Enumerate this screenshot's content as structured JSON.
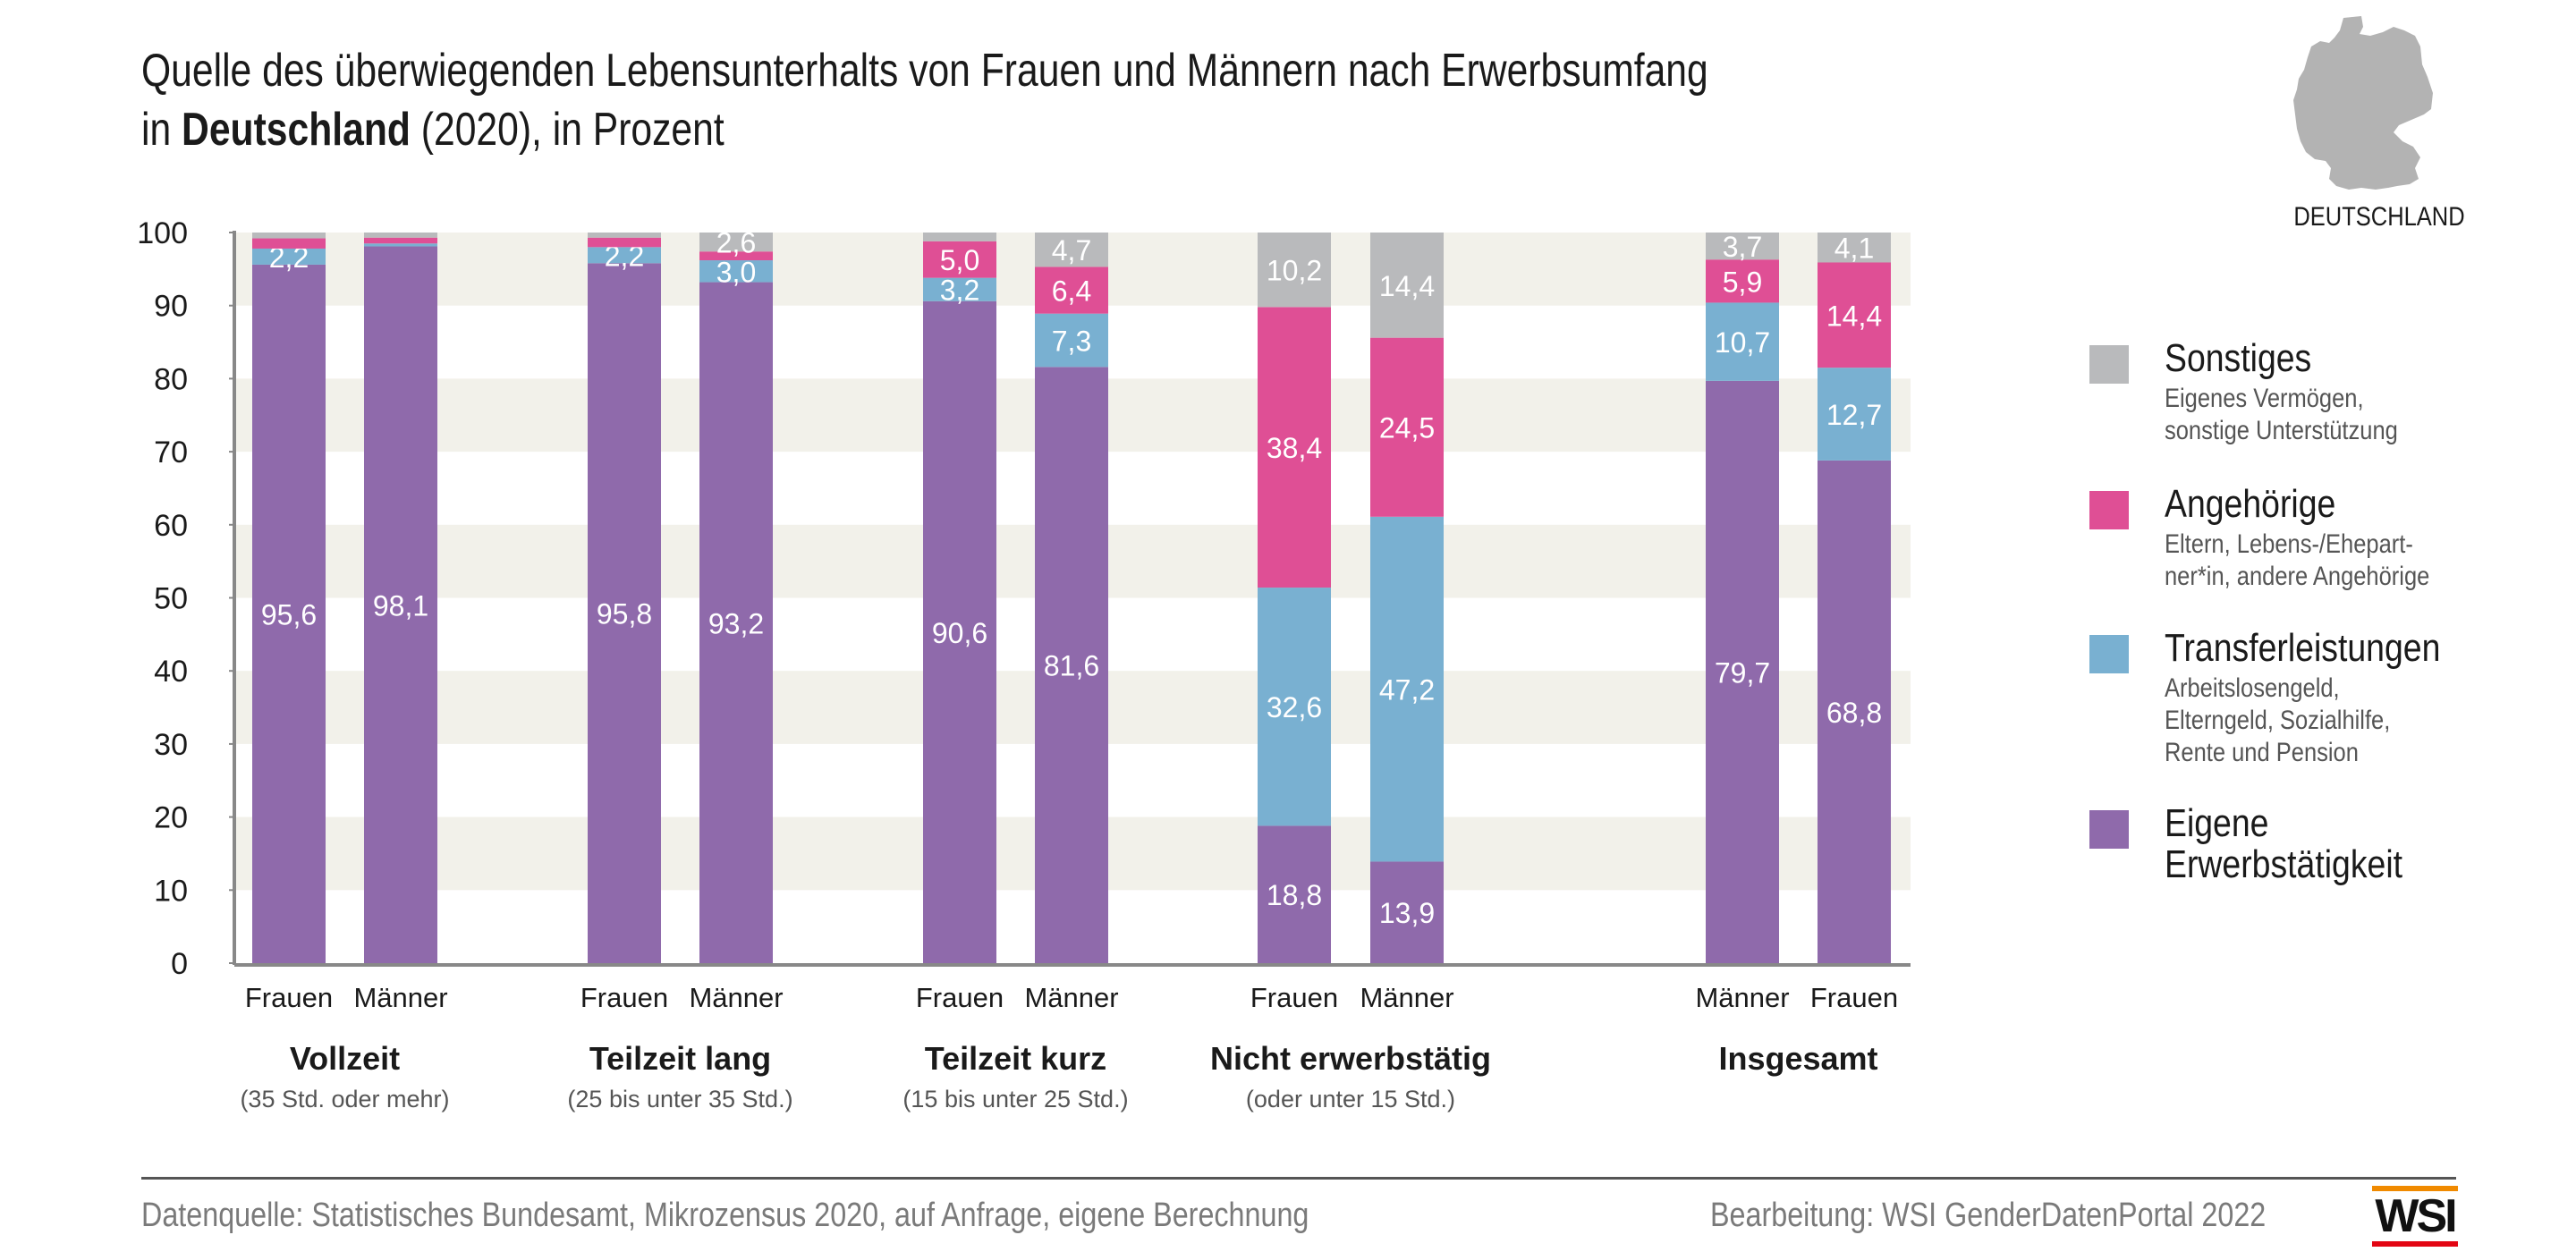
{
  "header": {
    "title_line1": "Quelle des überwiegenden Lebensunterhalts von Frauen und Männern nach Erwerbsumfang",
    "title_line2_prefix": "in ",
    "title_line2_bold": "Deutschland",
    "title_line2_suffix": " (2020), in Prozent"
  },
  "map": {
    "icon": "germany-map-icon",
    "label": "DEUTSCHLAND"
  },
  "legend": [
    {
      "key": "sonstiges",
      "title": "Sonstiges",
      "desc": "Eigenes Vermögen,\nsonstige Unterstützung",
      "color": "#b9babc"
    },
    {
      "key": "angehoerige",
      "title": "Angehörige",
      "desc": "Eltern, Lebens-/Ehepart-\nner*in, andere Angehörige",
      "color": "#df4f95"
    },
    {
      "key": "transfer",
      "title": "Transferleistungen",
      "desc": "Arbeitslosengeld,\nElterngeld, Sozialhilfe,\nRente und Pension",
      "color": "#79b0d1"
    },
    {
      "key": "eigene",
      "title": "Eigene\nErwerbstätigkeit",
      "desc": "",
      "color": "#8f6aab"
    }
  ],
  "footer": {
    "source": "Datenquelle: Statistisches Bundesamt, Mikrozensus 2020, auf Anfrage, eigene Berechnung",
    "credit": "Bearbeitung: WSI GenderDatenPortal 2022",
    "logo": "WSI"
  },
  "chart_data": {
    "type": "bar",
    "stacked": true,
    "title": "Quelle des überwiegenden Lebensunterhalts von Frauen und Männern nach Erwerbsumfang in Deutschland (2020), in Prozent",
    "xlabel": "",
    "ylabel": "",
    "ylim": [
      0,
      100
    ],
    "yticks": [
      0,
      10,
      20,
      30,
      40,
      50,
      60,
      70,
      80,
      90,
      100
    ],
    "grid": "alternating horizontal bands",
    "legend_position": "right",
    "groups": [
      {
        "label": "Vollzeit",
        "sublabel": "(35 Std. oder mehr)",
        "bars": [
          "Frauen",
          "Männer"
        ]
      },
      {
        "label": "Teilzeit lang",
        "sublabel": "(25 bis unter 35 Std.)",
        "bars": [
          "Frauen",
          "Männer"
        ]
      },
      {
        "label": "Teilzeit kurz",
        "sublabel": "(15 bis unter 25 Std.)",
        "bars": [
          "Frauen",
          "Männer"
        ]
      },
      {
        "label": "Nicht erwerbstätig",
        "sublabel": "(oder unter 15 Std.)",
        "bars": [
          "Frauen",
          "Männer"
        ]
      },
      {
        "label": "Insgesamt",
        "sublabel": "",
        "bars": [
          "Männer",
          "Frauen"
        ]
      }
    ],
    "categories": [
      "Vollzeit Frauen",
      "Vollzeit Männer",
      "Teilzeit lang Frauen",
      "Teilzeit lang Männer",
      "Teilzeit kurz Frauen",
      "Teilzeit kurz Männer",
      "Nicht erwerbstätig Frauen",
      "Nicht erwerbstätig Männer",
      "Insgesamt Männer",
      "Insgesamt Frauen"
    ],
    "series": [
      {
        "name": "Eigene Erwerbstätigkeit",
        "color": "#8f6aab",
        "values": [
          95.6,
          98.1,
          95.8,
          93.2,
          90.6,
          81.6,
          18.8,
          13.9,
          79.7,
          68.8
        ],
        "labels": [
          "95,6",
          "98,1",
          "95,8",
          "93,2",
          "90,6",
          "81,6",
          "18,8",
          "13,9",
          "79,7",
          "68,8"
        ]
      },
      {
        "name": "Transferleistungen",
        "color": "#79b0d1",
        "values": [
          2.2,
          0.4,
          2.2,
          3.0,
          3.2,
          7.3,
          32.6,
          47.2,
          10.7,
          12.7
        ],
        "labels": [
          "2,2",
          "",
          "2,2",
          "3,0",
          "3,2",
          "7,3",
          "32,6",
          "47,2",
          "10,7",
          "12,7"
        ]
      },
      {
        "name": "Angehörige",
        "color": "#df4f95",
        "values": [
          1.4,
          0.8,
          1.3,
          1.2,
          5.0,
          6.4,
          38.4,
          24.5,
          5.9,
          14.4
        ],
        "labels": [
          "",
          "",
          "",
          "",
          "5,0",
          "6,4",
          "38,4",
          "24,5",
          "5,9",
          "14,4"
        ]
      },
      {
        "name": "Sonstiges",
        "color": "#b9babc",
        "values": [
          0.8,
          0.7,
          0.7,
          2.6,
          1.2,
          4.7,
          10.2,
          14.4,
          3.7,
          4.1
        ],
        "labels": [
          "",
          "",
          "",
          "2,6",
          "",
          "4,7",
          "10,2",
          "14,4",
          "3,7",
          "4,1"
        ]
      }
    ]
  }
}
